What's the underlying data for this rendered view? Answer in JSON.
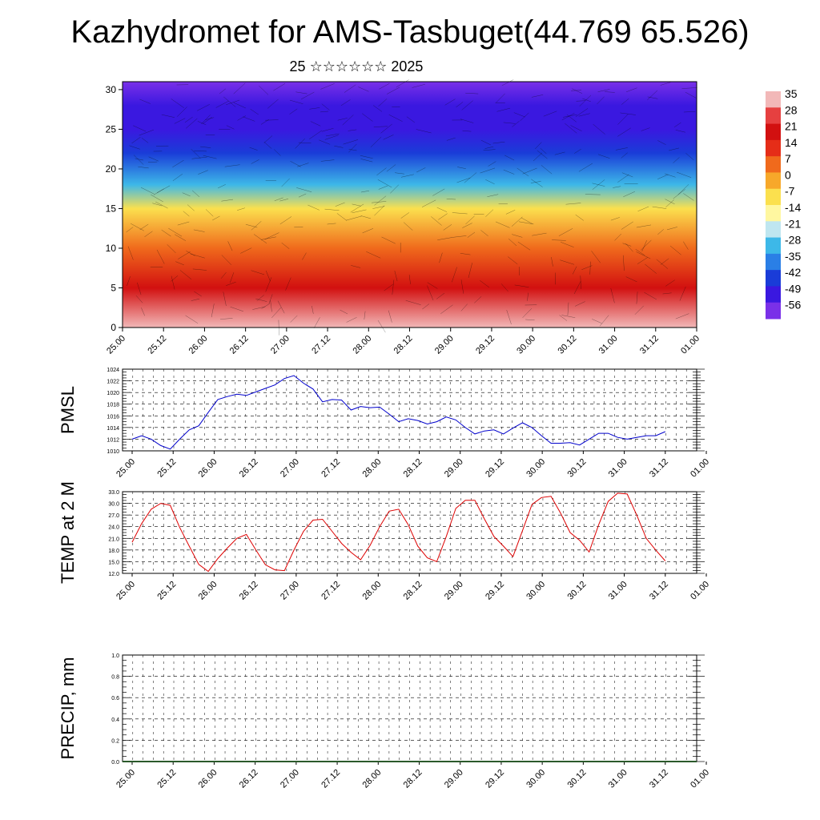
{
  "title": "Kazhydromet for AMS-Tasbuget(44.769 65.526)",
  "subtitle": "25 ☆☆☆☆☆☆ 2025",
  "chart_data": [
    {
      "type": "heatmap",
      "name": "vertical-cross-section",
      "x_tick_labels": [
        "25.00",
        "25.12",
        "26.00",
        "26.12",
        "27.00",
        "27.12",
        "28.00",
        "28.12",
        "29.00",
        "29.12",
        "30.00",
        "30.12",
        "31.00",
        "31.12",
        "01.00"
      ],
      "y_tick_labels": [
        "0",
        "5",
        "10",
        "15",
        "20",
        "25",
        "30"
      ],
      "ylim": [
        0,
        31
      ],
      "colorbar_labels": [
        "35",
        "28",
        "21",
        "14",
        "7",
        "0",
        "-7",
        "-14",
        "-21",
        "-28",
        "-35",
        "-42",
        "-49",
        "-56"
      ],
      "colorbar_colors": [
        "#f2b8b8",
        "#e64040",
        "#d21010",
        "#e52d18",
        "#f06a1c",
        "#f7a82a",
        "#fbe04e",
        "#fff7a0",
        "#bfe6f0",
        "#3db8e8",
        "#2a7fe6",
        "#1a3cd8",
        "#3a18e0",
        "#7a30e8"
      ],
      "profile": [
        {
          "height": 0,
          "value": 30
        },
        {
          "height": 5,
          "value": 18
        },
        {
          "height": 10,
          "value": 2
        },
        {
          "height": 15,
          "value": -12
        },
        {
          "height": 18,
          "value": -30
        },
        {
          "height": 22,
          "value": -48
        },
        {
          "height": 25,
          "value": -55
        },
        {
          "height": 28,
          "value": -52
        },
        {
          "height": 31,
          "value": -60
        }
      ]
    },
    {
      "type": "line",
      "name": "pmsl",
      "ylabel": "PMSL",
      "ylim": [
        1010,
        1024
      ],
      "y_tick_labels": [
        "1010",
        "1012",
        "1014",
        "1016",
        "1018",
        "1020",
        "1022",
        "1024"
      ],
      "x_tick_labels": [
        "25.00",
        "25.12",
        "26.00",
        "26.12",
        "27.00",
        "27.12",
        "28.00",
        "28.12",
        "29.00",
        "29.12",
        "30.00",
        "30.12",
        "31.00",
        "31.12",
        "01.00"
      ],
      "color": "#0000cc",
      "values": [
        1012.0,
        1012.6,
        1012.0,
        1010.9,
        1010.3,
        1012.0,
        1013.6,
        1014.3,
        1016.6,
        1018.8,
        1019.3,
        1019.7,
        1019.5,
        1020.1,
        1020.7,
        1021.3,
        1022.4,
        1022.9,
        1021.6,
        1020.6,
        1018.4,
        1018.8,
        1018.7,
        1017.0,
        1017.6,
        1017.4,
        1017.5,
        1016.3,
        1015.0,
        1015.5,
        1015.2,
        1014.6,
        1015.0,
        1015.8,
        1015.3,
        1014.0,
        1012.9,
        1013.4,
        1013.6,
        1012.9,
        1013.9,
        1014.8,
        1014.0,
        1012.6,
        1011.3,
        1011.3,
        1011.4,
        1011.0,
        1012.0,
        1013.0,
        1013.0,
        1012.3,
        1012.0,
        1012.3,
        1012.6,
        1012.6,
        1013.3
      ]
    },
    {
      "type": "line",
      "name": "temp-2m",
      "ylabel": "TEMP at 2 M",
      "ylim": [
        12,
        33
      ],
      "y_tick_labels": [
        "12.0",
        "15.0",
        "18.0",
        "21.0",
        "24.0",
        "27.0",
        "30.0",
        "33.0"
      ],
      "x_tick_labels": [
        "25.00",
        "25.12",
        "26.00",
        "26.12",
        "27.00",
        "27.12",
        "28.00",
        "28.12",
        "29.00",
        "29.12",
        "30.00",
        "30.12",
        "31.00",
        "31.12",
        "01.00"
      ],
      "color": "#dd0000",
      "values": [
        20.0,
        24.8,
        28.5,
        30.0,
        29.5,
        23.8,
        19.0,
        14.3,
        12.5,
        15.8,
        18.5,
        21.0,
        22.0,
        18.0,
        14.2,
        12.9,
        12.7,
        18.0,
        22.8,
        25.7,
        25.9,
        22.8,
        19.7,
        17.4,
        15.5,
        19.2,
        24.0,
        28.0,
        28.5,
        24.5,
        19.0,
        16.0,
        15.0,
        21.5,
        28.7,
        30.8,
        30.8,
        26.0,
        21.5,
        19.0,
        16.3,
        23.0,
        29.7,
        31.5,
        31.8,
        27.5,
        22.5,
        20.5,
        17.5,
        24.5,
        30.5,
        32.6,
        32.4,
        27.0,
        21.0,
        18.0,
        15.2
      ]
    },
    {
      "type": "bar",
      "name": "precip",
      "ylabel": "PRECIP, mm",
      "ylim": [
        0,
        1
      ],
      "y_tick_labels": [
        "0.0",
        "0.2",
        "0.4",
        "0.6",
        "0.8",
        "1.0"
      ],
      "x_tick_labels": [
        "25.00",
        "25.12",
        "26.00",
        "26.12",
        "27.00",
        "27.12",
        "28.00",
        "28.12",
        "29.00",
        "29.12",
        "30.00",
        "30.12",
        "31.00",
        "31.12",
        "01.00"
      ],
      "values": []
    }
  ]
}
